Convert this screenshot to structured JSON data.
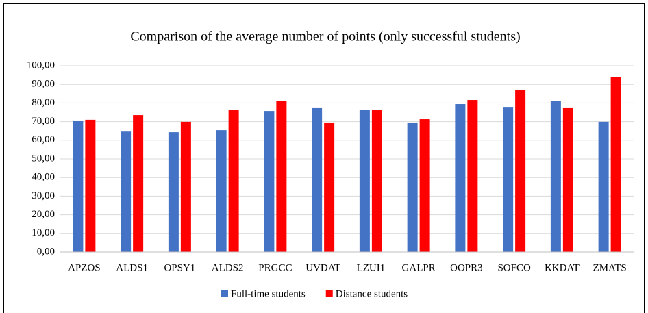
{
  "chart_data": {
    "type": "bar",
    "title": "Comparison of the average number of points (only successful students)",
    "categories": [
      "APZOS",
      "ALDS1",
      "OPSY1",
      "ALDS2",
      "PRGCC",
      "UVDAT",
      "LZUI1",
      "GALPR",
      "OOPR3",
      "SOFCO",
      "KKDAT",
      "ZMATS"
    ],
    "series": [
      {
        "name": "Full-time students",
        "color": "#4472c4",
        "values": [
          70.6,
          65,
          64.3,
          65.4,
          75.7,
          77.6,
          76.1,
          69.5,
          79.4,
          77.9,
          81.2,
          69.9
        ]
      },
      {
        "name": "Distance students",
        "color": "#ff0000",
        "values": [
          71,
          73.5,
          69.9,
          76.1,
          80.9,
          69.5,
          76.1,
          71.3,
          81.6,
          86.8,
          77.6,
          93.8
        ]
      }
    ],
    "ylim": [
      0,
      100
    ],
    "yticks": [
      {
        "value": 0,
        "label": "0,00"
      },
      {
        "value": 10,
        "label": "10,00"
      },
      {
        "value": 20,
        "label": "20,00"
      },
      {
        "value": 30,
        "label": "30,00"
      },
      {
        "value": 40,
        "label": "40,00"
      },
      {
        "value": 50,
        "label": "50,00"
      },
      {
        "value": 60,
        "label": "60,00"
      },
      {
        "value": 70,
        "label": "70,00"
      },
      {
        "value": 80,
        "label": "80,00"
      },
      {
        "value": 90,
        "label": "90,00"
      },
      {
        "value": 100,
        "label": "100,00"
      }
    ],
    "grid": true,
    "legend": "bottom"
  }
}
